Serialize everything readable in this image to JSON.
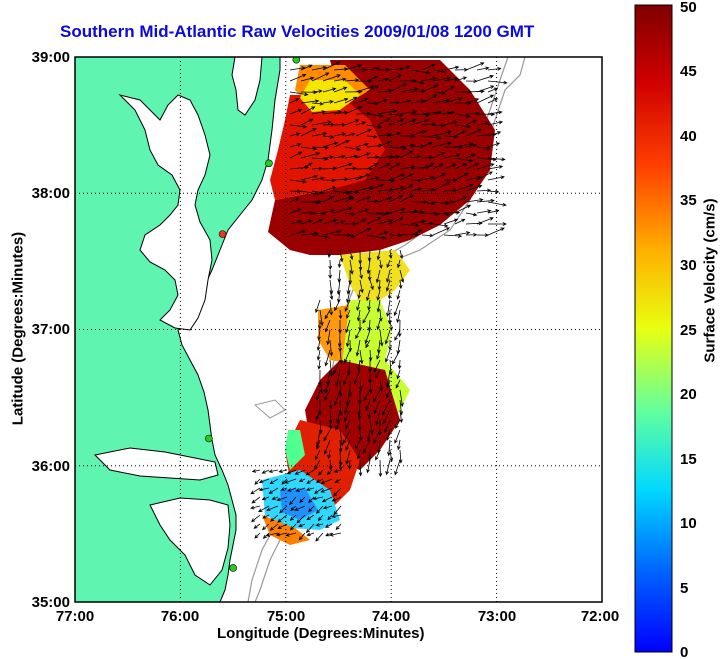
{
  "title": "Southern Mid-Atlantic Raw Velocities 2009/01/08 1200 GMT",
  "x_axis_label": "Longitude (Degrees:Minutes)",
  "y_axis_label": "Latitude (Degrees:Minutes)",
  "x_ticks": [
    "77:00",
    "76:00",
    "75:00",
    "74:00",
    "73:00",
    "72:00"
  ],
  "y_ticks": [
    "39:00",
    "38:00",
    "37:00",
    "36:00",
    "35:00"
  ],
  "colorbar": {
    "label": "Surface Velocity (cm/s)",
    "ticks": [
      "50",
      "45",
      "40",
      "35",
      "30",
      "25",
      "20",
      "15",
      "10",
      "5",
      "0"
    ],
    "range": [
      0,
      50
    ],
    "colormap": "jet"
  },
  "map": {
    "lon_range": [
      -77,
      -72
    ],
    "lat_range": [
      35,
      39
    ],
    "grid": "dotted",
    "land_color": "#5ff5b0",
    "coastline_color": "#000000",
    "bathymetry_color": "#999999",
    "vector_color": "#000000",
    "stations": [
      {
        "lon": -74.9,
        "lat": 38.98,
        "color": "#22cc22"
      },
      {
        "lon": -75.16,
        "lat": 38.22,
        "color": "#22cc22"
      },
      {
        "lon": -75.6,
        "lat": 37.7,
        "color": "#ee3322"
      },
      {
        "lon": -75.73,
        "lat": 36.2,
        "color": "#22cc22"
      },
      {
        "lon": -75.5,
        "lat": 35.25,
        "color": "#22cc22"
      }
    ]
  }
}
